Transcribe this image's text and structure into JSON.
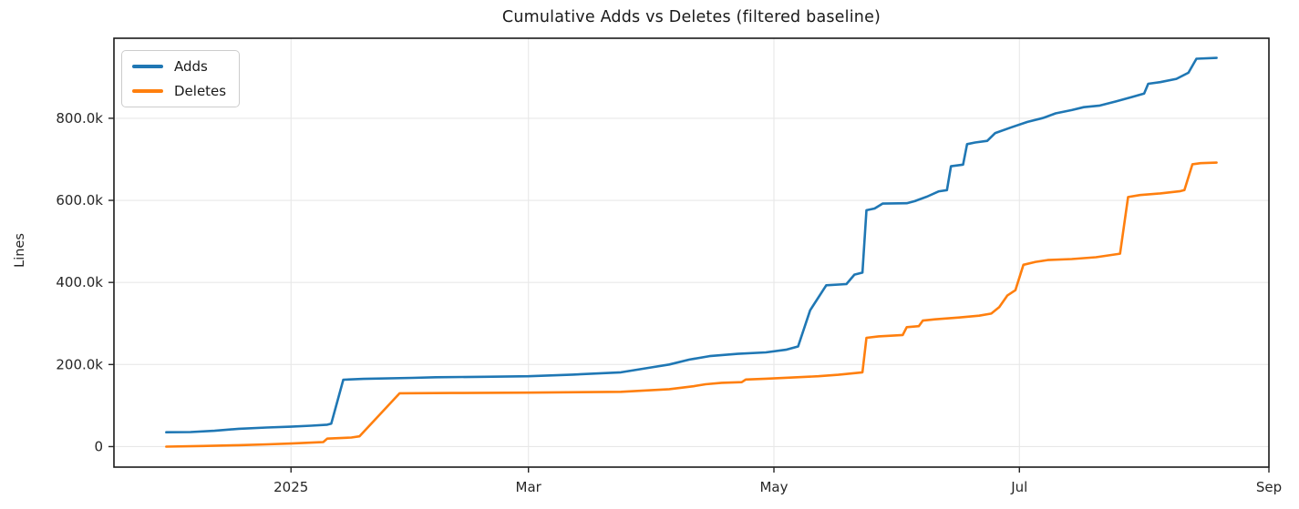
{
  "chart": {
    "title": "Cumulative Adds vs Deletes (filtered baseline)",
    "ylabel": "Lines"
  },
  "legend": {
    "items": [
      {
        "label": "Adds",
        "color": "#1f77b4"
      },
      {
        "label": "Deletes",
        "color": "#ff7f0e"
      }
    ]
  },
  "chart_data": {
    "type": "line",
    "title": "Cumulative Adds vs Deletes (filtered baseline)",
    "xlabel": "",
    "ylabel": "Lines",
    "x_unit": "days since 2025-01-01",
    "xlim": [
      -44,
      243
    ],
    "ylim": [
      -50000,
      995000
    ],
    "grid": true,
    "legend_position": "upper left",
    "background": "#ffffff",
    "grid_color": "#e8e8e8",
    "spine_color": "#1a1a1a",
    "tick_color": "#262626",
    "x_ticks": [
      {
        "d": 0,
        "label": "2025"
      },
      {
        "d": 59,
        "label": "Mar"
      },
      {
        "d": 120,
        "label": "May"
      },
      {
        "d": 181,
        "label": "Jul"
      },
      {
        "d": 243,
        "label": "Sep"
      }
    ],
    "y_ticks": [
      {
        "v": 0,
        "label": "0"
      },
      {
        "v": 200000,
        "label": "200.0k"
      },
      {
        "v": 400000,
        "label": "400.0k"
      },
      {
        "v": 600000,
        "label": "600.0k"
      },
      {
        "v": 800000,
        "label": "800.0k"
      }
    ],
    "series": [
      {
        "name": "Adds",
        "color": "#1f77b4",
        "points": [
          [
            -31,
            35000
          ],
          [
            -25,
            35500
          ],
          [
            -19,
            38500
          ],
          [
            -13,
            43500
          ],
          [
            -6,
            46500
          ],
          [
            0,
            48500
          ],
          [
            5,
            51000
          ],
          [
            9,
            53500
          ],
          [
            10,
            56000
          ],
          [
            13,
            163000
          ],
          [
            18,
            165000
          ],
          [
            30,
            167500
          ],
          [
            36,
            169000
          ],
          [
            48,
            170000
          ],
          [
            59,
            171500
          ],
          [
            70,
            175500
          ],
          [
            82,
            181000
          ],
          [
            89,
            192000
          ],
          [
            94,
            200000
          ],
          [
            99,
            212000
          ],
          [
            104,
            220500
          ],
          [
            111,
            226000
          ],
          [
            118,
            229500
          ],
          [
            123,
            236000
          ],
          [
            126,
            244000
          ],
          [
            129,
            332000
          ],
          [
            133,
            393000
          ],
          [
            138,
            396000
          ],
          [
            140,
            419000
          ],
          [
            142,
            424000
          ],
          [
            143,
            576000
          ],
          [
            145,
            580000
          ],
          [
            147,
            592000
          ],
          [
            153,
            593000
          ],
          [
            155,
            598000
          ],
          [
            158,
            609000
          ],
          [
            161,
            622000
          ],
          [
            163,
            625000
          ],
          [
            164,
            683000
          ],
          [
            167,
            687000
          ],
          [
            168,
            737000
          ],
          [
            170,
            741000
          ],
          [
            173,
            745000
          ],
          [
            175,
            764000
          ],
          [
            179,
            778000
          ],
          [
            183,
            791000
          ],
          [
            187,
            801000
          ],
          [
            190,
            812000
          ],
          [
            194,
            820000
          ],
          [
            197,
            827000
          ],
          [
            201,
            831000
          ],
          [
            205,
            841000
          ],
          [
            209,
            852000
          ],
          [
            212,
            860000
          ],
          [
            213,
            884000
          ],
          [
            216,
            888000
          ],
          [
            220,
            896000
          ],
          [
            223,
            911000
          ],
          [
            225,
            945000
          ],
          [
            230,
            947000
          ]
        ]
      },
      {
        "name": "Deletes",
        "color": "#ff7f0e",
        "points": [
          [
            -31,
            0
          ],
          [
            -22,
            1500
          ],
          [
            -13,
            3500
          ],
          [
            -6,
            5500
          ],
          [
            0,
            7500
          ],
          [
            7,
            10500
          ],
          [
            8,
            11000
          ],
          [
            9,
            19500
          ],
          [
            15,
            22000
          ],
          [
            17,
            25000
          ],
          [
            27,
            130000
          ],
          [
            40,
            130500
          ],
          [
            59,
            131500
          ],
          [
            82,
            133500
          ],
          [
            94,
            140000
          ],
          [
            100,
            147000
          ],
          [
            103,
            152000
          ],
          [
            107,
            155500
          ],
          [
            112,
            157000
          ],
          [
            113,
            163500
          ],
          [
            118,
            165500
          ],
          [
            124,
            168000
          ],
          [
            131,
            171500
          ],
          [
            136,
            175000
          ],
          [
            140,
            179000
          ],
          [
            142,
            181000
          ],
          [
            143,
            265000
          ],
          [
            146,
            268500
          ],
          [
            152,
            272000
          ],
          [
            153,
            291000
          ],
          [
            156,
            293500
          ],
          [
            157,
            307000
          ],
          [
            160,
            310000
          ],
          [
            166,
            314500
          ],
          [
            171,
            319000
          ],
          [
            174,
            324000
          ],
          [
            176,
            340000
          ],
          [
            178,
            368000
          ],
          [
            180,
            381000
          ],
          [
            182,
            443000
          ],
          [
            185,
            450000
          ],
          [
            188,
            454500
          ],
          [
            194,
            457000
          ],
          [
            200,
            461500
          ],
          [
            206,
            470000
          ],
          [
            208,
            608000
          ],
          [
            211,
            613000
          ],
          [
            216,
            617000
          ],
          [
            221,
            622500
          ],
          [
            222,
            625000
          ],
          [
            224,
            688000
          ],
          [
            226,
            690500
          ],
          [
            230,
            692000
          ]
        ]
      }
    ]
  }
}
